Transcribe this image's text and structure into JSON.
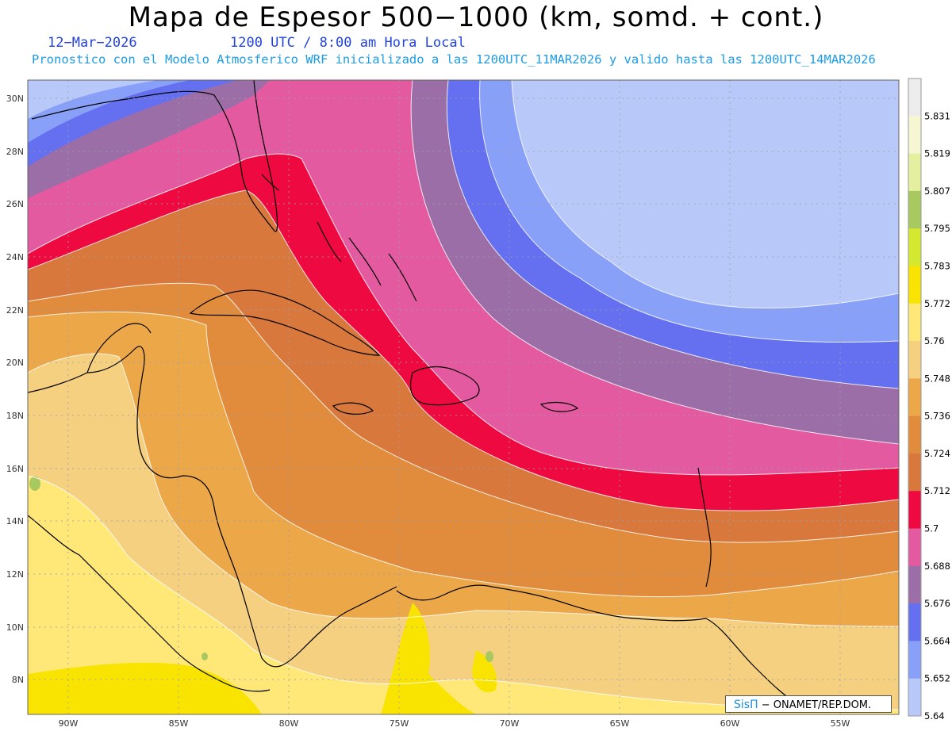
{
  "title": "Mapa de Espesor 500−1000 (km, somd. + cont.)",
  "date": "12−Mar−2026",
  "time": "1200 UTC / 8:00 am Hora Local",
  "forecast_note": "Pronostico con el Modelo Atmosferico WRF inicializado a las 1200UTC_11MAR2026 y valido hasta las  1200UTC_14MAR2026",
  "credit": {
    "brand": "SisΠ",
    "text": "− ONAMET/REP.DOM."
  },
  "lat_labels": [
    "30N",
    "28N",
    "26N",
    "24N",
    "22N",
    "20N",
    "18N",
    "16N",
    "14N",
    "12N",
    "10N",
    "8N"
  ],
  "lon_labels": [
    "90W",
    "85W",
    "80W",
    "75W",
    "70W",
    "65W",
    "60W",
    "55W"
  ],
  "colorbar": {
    "labels": [
      "5.831",
      "5.819",
      "5.807",
      "5.795",
      "5.783",
      "5.772",
      "5.76",
      "5.748",
      "5.736",
      "5.724",
      "5.712",
      "5.7",
      "5.688",
      "5.676",
      "5.664",
      "5.652",
      "5.64"
    ],
    "colors": [
      "#ececec",
      "#f6f6d2",
      "#e4f0a0",
      "#a8c860",
      "#d4e830",
      "#f8e400",
      "#ffe878",
      "#f4d080",
      "#eca848",
      "#e08c3c",
      "#d8783c",
      "#ee0a40",
      "#e45aa0",
      "#9c6ea8",
      "#6470f0",
      "#88a0f8",
      "#b8c8f8"
    ]
  }
}
